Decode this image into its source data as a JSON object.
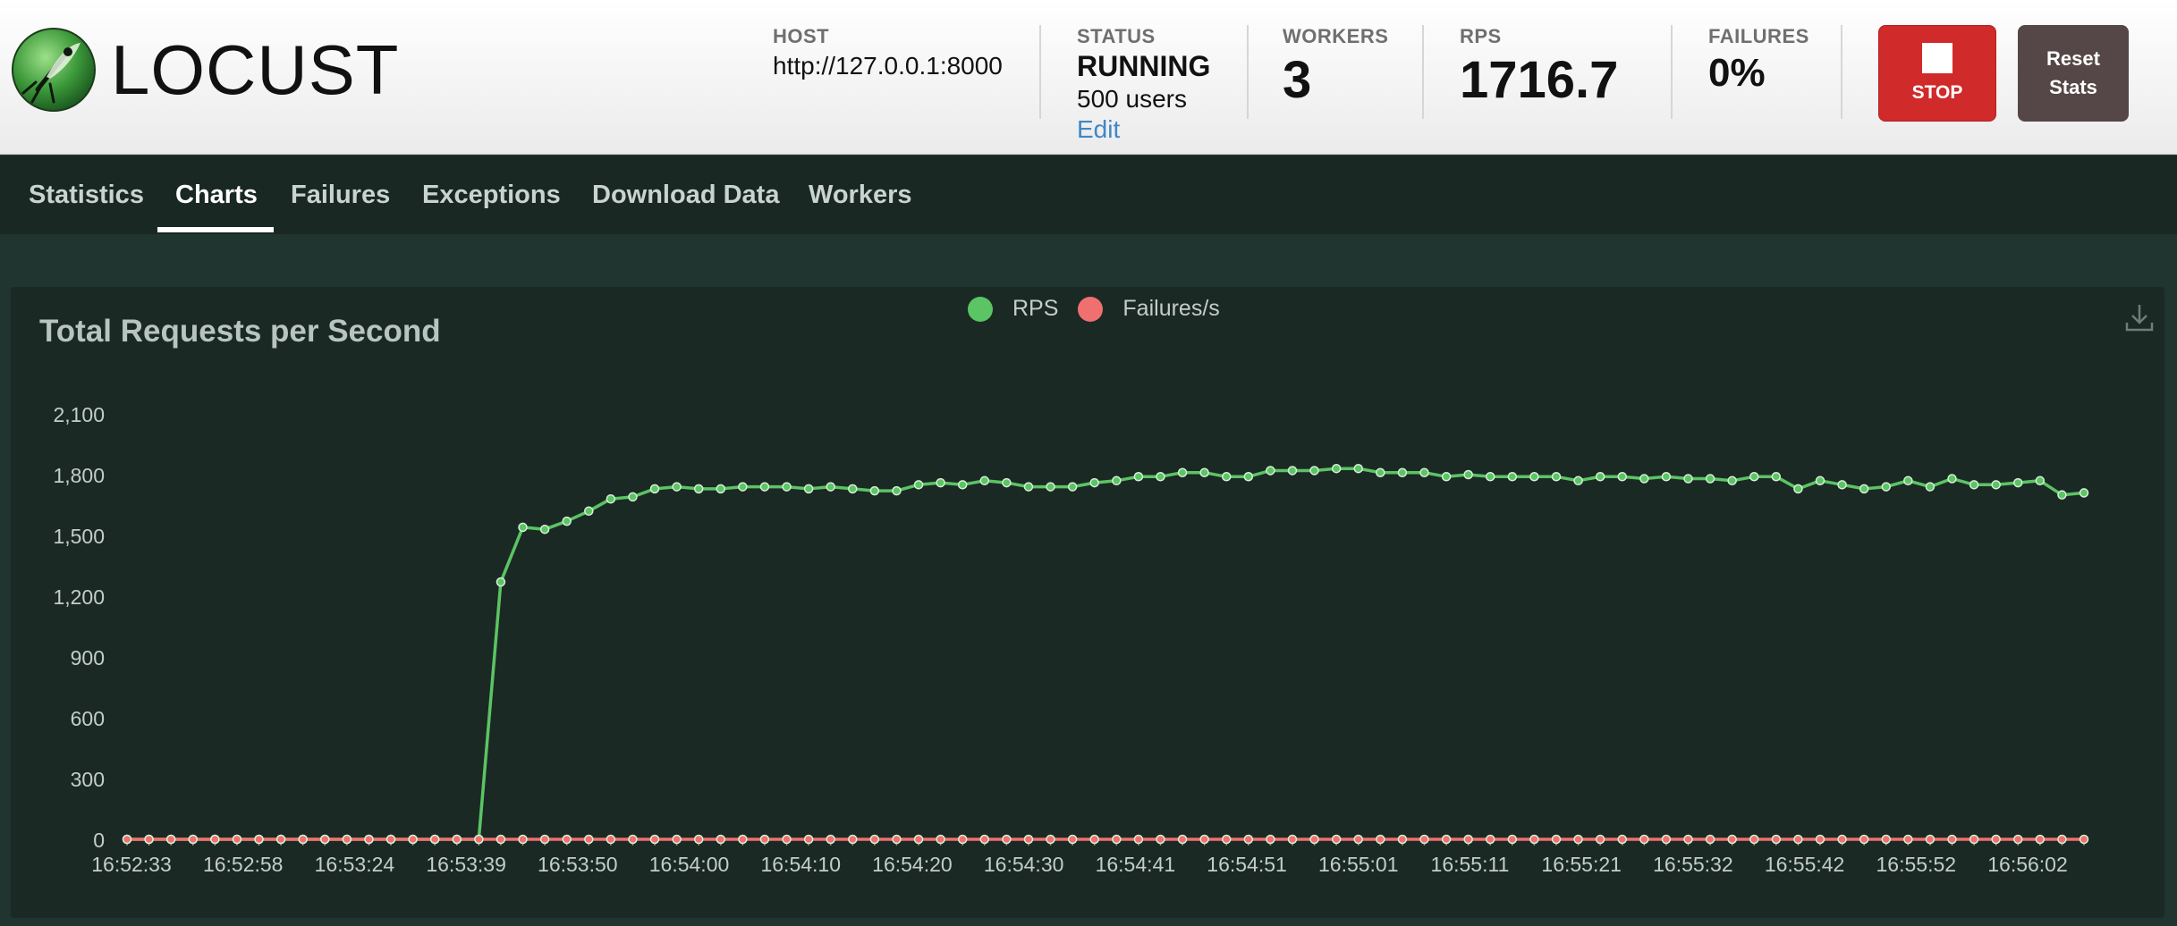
{
  "header": {
    "logo_text": "LOCUST",
    "host": {
      "label": "HOST",
      "value": "http://127.0.0.1:8000"
    },
    "status": {
      "label": "STATUS",
      "value": "RUNNING",
      "users": "500 users",
      "edit": "Edit"
    },
    "workers": {
      "label": "WORKERS",
      "value": "3"
    },
    "rps": {
      "label": "RPS",
      "value": "1716.7"
    },
    "failures": {
      "label": "FAILURES",
      "value": "0%"
    },
    "stop_label": "STOP",
    "reset_label": "Reset Stats",
    "colors": {
      "stop": "#d02a2a",
      "reset": "#554747"
    }
  },
  "nav": {
    "tabs": [
      {
        "label": "Statistics",
        "active": false
      },
      {
        "label": "Charts",
        "active": true
      },
      {
        "label": "Failures",
        "active": false
      },
      {
        "label": "Exceptions",
        "active": false
      },
      {
        "label": "Download Data",
        "active": false
      },
      {
        "label": "Workers",
        "active": false
      }
    ]
  },
  "chart_data": {
    "type": "line",
    "title": "Total Requests per Second",
    "legend_placement": "top-center",
    "ylim": [
      0,
      2100
    ],
    "y_ticks": [
      "0",
      "300",
      "600",
      "900",
      "1,200",
      "1,500",
      "1,800",
      "2,100"
    ],
    "x_tick_labels": [
      "16:52:33",
      "16:52:58",
      "16:53:24",
      "16:53:39",
      "16:53:50",
      "16:54:00",
      "16:54:10",
      "16:54:20",
      "16:54:30",
      "16:54:41",
      "16:54:51",
      "16:55:01",
      "16:55:11",
      "16:55:21",
      "16:55:32",
      "16:55:42",
      "16:55:52",
      "16:56:02"
    ],
    "series": [
      {
        "name": "RPS",
        "color": "#5bc464",
        "values": [
          0,
          0,
          0,
          0,
          0,
          0,
          0,
          0,
          0,
          0,
          0,
          0,
          0,
          0,
          0,
          0,
          0,
          1270,
          1540,
          1530,
          1570,
          1620,
          1680,
          1690,
          1730,
          1740,
          1730,
          1730,
          1740,
          1740,
          1740,
          1730,
          1740,
          1730,
          1720,
          1720,
          1750,
          1760,
          1750,
          1770,
          1760,
          1740,
          1740,
          1740,
          1760,
          1770,
          1790,
          1790,
          1810,
          1810,
          1790,
          1790,
          1820,
          1820,
          1820,
          1830,
          1830,
          1810,
          1810,
          1810,
          1790,
          1800,
          1790,
          1790,
          1790,
          1790,
          1770,
          1790,
          1790,
          1780,
          1790,
          1780,
          1780,
          1770,
          1790,
          1790,
          1730,
          1770,
          1750,
          1730,
          1740,
          1770,
          1740,
          1780,
          1750,
          1750,
          1760,
          1770,
          1700,
          1710
        ]
      },
      {
        "name": "Failures/s",
        "color": "#f07070",
        "values": [
          0,
          0,
          0,
          0,
          0,
          0,
          0,
          0,
          0,
          0,
          0,
          0,
          0,
          0,
          0,
          0,
          0,
          0,
          0,
          0,
          0,
          0,
          0,
          0,
          0,
          0,
          0,
          0,
          0,
          0,
          0,
          0,
          0,
          0,
          0,
          0,
          0,
          0,
          0,
          0,
          0,
          0,
          0,
          0,
          0,
          0,
          0,
          0,
          0,
          0,
          0,
          0,
          0,
          0,
          0,
          0,
          0,
          0,
          0,
          0,
          0,
          0,
          0,
          0,
          0,
          0,
          0,
          0,
          0,
          0,
          0,
          0,
          0,
          0,
          0,
          0,
          0,
          0,
          0,
          0,
          0,
          0,
          0,
          0,
          0,
          0,
          0,
          0,
          0,
          0
        ]
      }
    ]
  }
}
